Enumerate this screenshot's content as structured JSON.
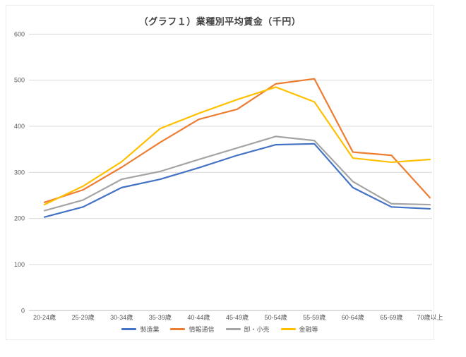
{
  "chart_data": {
    "type": "line",
    "title": "（グラフ１）業種別平均賃金（千円）",
    "xlabel": "",
    "ylabel": "",
    "categories": [
      "20-24歳",
      "25-29歳",
      "30-34歳",
      "35-39歳",
      "40-44歳",
      "45-49歳",
      "50-54歳",
      "55-59歳",
      "60-64歳",
      "65-69歳",
      "70歳以上"
    ],
    "series": [
      {
        "name": "製造業",
        "color": "#4472C4",
        "values": [
          203,
          225,
          267,
          285,
          310,
          337,
          360,
          362,
          267,
          225,
          221
        ]
      },
      {
        "name": "情報通信",
        "color": "#ED7D31",
        "values": [
          235,
          262,
          311,
          365,
          415,
          437,
          492,
          503,
          344,
          337,
          245
        ]
      },
      {
        "name": "卸・小売",
        "color": "#A5A5A5",
        "values": [
          217,
          240,
          285,
          302,
          328,
          353,
          378,
          369,
          280,
          232,
          230
        ]
      },
      {
        "name": "金融等",
        "color": "#FFC000",
        "values": [
          230,
          270,
          323,
          395,
          428,
          458,
          485,
          453,
          331,
          322,
          328
        ]
      }
    ],
    "ylim": [
      0,
      600
    ],
    "yticks": [
      0,
      100,
      200,
      300,
      400,
      500,
      600
    ],
    "grid": "horizontal",
    "gridline_color": "#D9D9D9",
    "axis_line_color": "#BFBFBF",
    "tick_label_color": "#595959",
    "legend_position": "bottom"
  }
}
